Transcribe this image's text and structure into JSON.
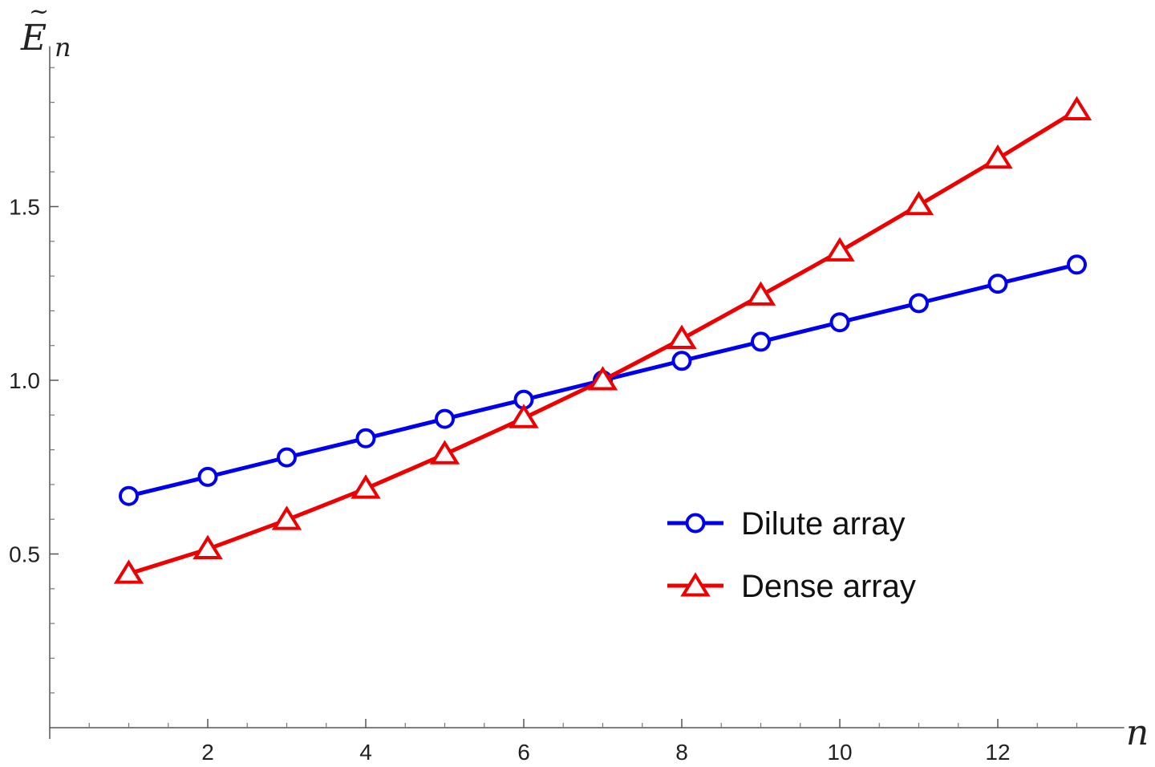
{
  "chart_data": {
    "type": "line",
    "xlabel": "n",
    "ylabel_base": "E",
    "ylabel_tilde": "~",
    "ylabel_sub": "n",
    "x": [
      1,
      2,
      3,
      4,
      5,
      6,
      7,
      8,
      9,
      10,
      11,
      12,
      13
    ],
    "xlim": [
      0,
      13.6
    ],
    "ylim": [
      0.05,
      1.95
    ],
    "x_ticks": [
      2,
      4,
      6,
      8,
      10,
      12
    ],
    "x_tick_labels": [
      "2",
      "4",
      "6",
      "8",
      "10",
      "12"
    ],
    "x_minor_ticks": [
      0.5,
      1,
      1.5,
      2.5,
      3,
      3.5,
      4.5,
      5,
      5.5,
      6.5,
      7,
      7.5,
      8.5,
      9,
      9.5,
      10.5,
      11,
      11.5,
      12.5,
      13
    ],
    "y_ticks": [
      0.5,
      1.0,
      1.5
    ],
    "y_tick_labels": [
      "0.5",
      "1.0",
      "1.5"
    ],
    "y_minor_ticks": [
      0.1,
      0.2,
      0.3,
      0.4,
      0.6,
      0.7,
      0.8,
      0.9,
      1.1,
      1.2,
      1.3,
      1.4,
      1.6,
      1.7,
      1.8,
      1.9
    ],
    "grid": false,
    "legend_position": "center-right",
    "series": [
      {
        "name": "Dilute array",
        "color": "#0000ee",
        "marker": "circle",
        "values": [
          0.667,
          0.722,
          0.778,
          0.833,
          0.889,
          0.944,
          1.0,
          1.056,
          1.111,
          1.167,
          1.222,
          1.278,
          1.333
        ]
      },
      {
        "name": "Dense array",
        "color": "#ee0000",
        "marker": "triangle",
        "values": [
          0.443,
          0.514,
          0.598,
          0.688,
          0.787,
          0.891,
          1.0,
          1.119,
          1.244,
          1.371,
          1.504,
          1.638,
          1.777
        ]
      }
    ]
  }
}
